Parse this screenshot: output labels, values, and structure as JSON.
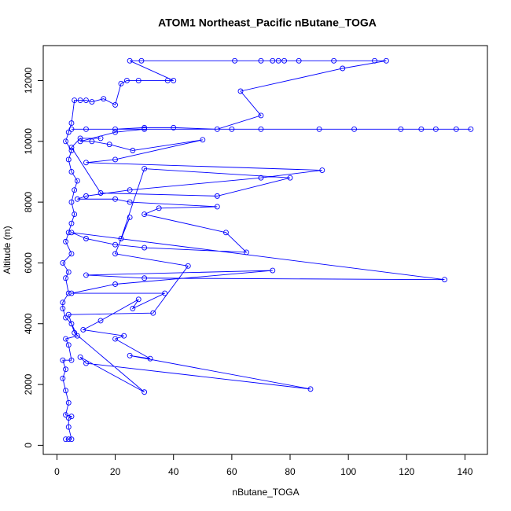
{
  "chart_data": {
    "type": "line",
    "title": "ATOM1 Northeast_Pacific nButane_TOGA",
    "x_label": "nButane_TOGA",
    "y_label": "Altitude (m)",
    "color": "#0000ff",
    "markers": true,
    "xlim": [
      -4.7,
      147.7
    ],
    "ylim": [
      -300,
      13150
    ],
    "xticks": [
      0,
      20,
      40,
      60,
      80,
      100,
      120,
      140
    ],
    "yticks": [
      0,
      2000,
      4000,
      6000,
      8000,
      10000,
      12000
    ],
    "x": [
      3,
      4,
      5,
      4,
      4,
      5,
      3,
      4,
      3,
      2,
      3,
      2,
      5,
      4,
      3,
      7,
      5,
      3,
      2,
      2,
      4,
      3,
      4,
      2,
      5,
      3,
      4,
      5,
      6,
      5,
      6,
      7,
      5,
      4,
      5,
      3,
      4,
      5,
      6,
      8,
      10,
      12,
      16,
      20,
      22,
      24,
      28,
      38,
      40,
      25,
      29,
      61,
      70,
      74,
      76,
      78,
      83,
      95,
      109,
      113,
      98,
      63,
      70,
      55,
      40,
      30,
      20,
      10,
      5,
      60,
      70,
      90,
      102,
      118,
      125,
      130,
      137,
      142,
      30,
      20,
      8,
      12,
      18,
      26,
      50,
      20,
      10,
      91,
      70,
      25,
      10,
      7,
      20,
      25,
      55,
      35,
      30,
      58,
      65,
      30,
      20,
      10,
      5,
      133,
      30,
      10,
      74,
      20,
      5,
      37,
      26,
      28,
      15,
      9,
      23,
      20,
      32,
      25,
      87,
      10,
      8,
      30,
      6,
      4,
      33,
      45,
      20,
      25,
      22,
      30,
      80,
      55,
      15,
      5,
      8,
      15
    ],
    "values": [
      200,
      200,
      200,
      600,
      900,
      950,
      1000,
      1400,
      1800,
      2200,
      2500,
      2800,
      2800,
      3300,
      3500,
      3600,
      4000,
      4200,
      4500,
      4700,
      5000,
      5500,
      5700,
      6000,
      6300,
      6700,
      7000,
      7300,
      7600,
      8000,
      8400,
      8700,
      9000,
      9400,
      9700,
      10000,
      10300,
      10600,
      11350,
      11350,
      11350,
      11300,
      11400,
      11200,
      11900,
      12000,
      12000,
      12000,
      12000,
      12650,
      12650,
      12650,
      12650,
      12650,
      12650,
      12650,
      12650,
      12650,
      12650,
      12650,
      12400,
      11650,
      10850,
      10400,
      10450,
      10450,
      10400,
      10400,
      10400,
      10400,
      10400,
      10400,
      10400,
      10400,
      10400,
      10400,
      10400,
      10400,
      10400,
      10300,
      10000,
      10000,
      9900,
      9700,
      10050,
      9400,
      9300,
      9050,
      8800,
      8400,
      8200,
      8100,
      8100,
      8000,
      7850,
      7800,
      7600,
      7000,
      6350,
      6500,
      6600,
      6800,
      7000,
      5450,
      5500,
      5600,
      5750,
      5300,
      5000,
      5000,
      4500,
      4800,
      4100,
      3800,
      3600,
      3500,
      2850,
      2950,
      1850,
      2700,
      2900,
      1750,
      3700,
      4300,
      4350,
      5900,
      6300,
      7500,
      6800,
      9100,
      8800,
      8200,
      8300,
      9800,
      10100,
      10100
    ]
  }
}
